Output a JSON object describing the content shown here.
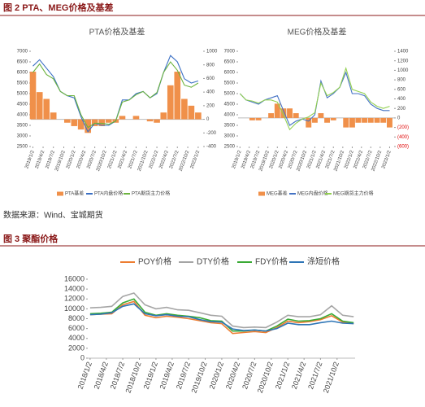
{
  "figure_2_title": "图 2 PTA、MEG价格及基差",
  "source": "数据来源：Wind、宝城期货",
  "figure_3_title": "图 3 聚酯价格",
  "chart_data": [
    {
      "type": "line",
      "title": "PTA价格及基差",
      "x": [
        "2019/1/2",
        "2019/3/2",
        "2019/5/2",
        "2019/7/2",
        "2019/9/2",
        "2019/11/2",
        "2020/1/2",
        "2020/3/2",
        "2020/5/2",
        "2020/7/2",
        "2020/9/2",
        "2020/11/2",
        "2021/1/2",
        "2021/3/2",
        "2021/5/2",
        "2021/7/2",
        "2021/9/2",
        "2021/11/2",
        "2022/1/2",
        "2022/3/2",
        "2022/5/2",
        "2022/7/2",
        "2022/9/2",
        "2022/11/2",
        "2023/1/2"
      ],
      "xlim": [
        "2018/12/15",
        "2023/2/15"
      ],
      "xticks": [
        "2019/1/2",
        "2019/4/2",
        "2019/7/2",
        "2019/10/2",
        "2020/1/2",
        "2020/4/2",
        "2020/7/2",
        "2020/10/2",
        "2021/1/2",
        "2021/4/2",
        "2021/7/2",
        "2021/10/2",
        "2022/1/2",
        "2022/4/2",
        "2022/7/2",
        "2022/10/2",
        "2023/1/2"
      ],
      "ylim": [
        2500,
        7000
      ],
      "yticks": [
        2500,
        3000,
        3500,
        4000,
        4500,
        5000,
        5500,
        6000,
        6500,
        7000
      ],
      "y2lim": [
        -400,
        1000
      ],
      "y2ticks": [
        -400,
        -200,
        0,
        200,
        400,
        600,
        800,
        1000
      ],
      "series": [
        {
          "name": "PTA基差",
          "type": "bar",
          "axis": "y2",
          "color": "#f0904a",
          "values": [
            700,
            400,
            300,
            100,
            0,
            -50,
            -100,
            -150,
            -200,
            -100,
            -100,
            -50,
            -50,
            50,
            0,
            50,
            0,
            -30,
            -50,
            100,
            500,
            700,
            300,
            200,
            100
          ]
        },
        {
          "name": "PTA内盘价格",
          "type": "line",
          "color": "#3a6fc4",
          "values": [
            6300,
            6600,
            6200,
            5800,
            5100,
            4900,
            4800,
            3900,
            3200,
            3600,
            3500,
            3500,
            3700,
            4700,
            4700,
            5000,
            5100,
            4800,
            5000,
            6000,
            6800,
            6500,
            5700,
            5500,
            5600
          ]
        },
        {
          "name": "PTA期货主力价格",
          "type": "line",
          "color": "#6cb33e",
          "values": [
            6000,
            6400,
            5900,
            5700,
            5100,
            4900,
            4900,
            4000,
            3400,
            3600,
            3600,
            3550,
            3700,
            4600,
            4700,
            4950,
            5100,
            4800,
            5050,
            6000,
            6500,
            6100,
            5400,
            5300,
            5500
          ]
        }
      ]
    },
    {
      "type": "line",
      "title": "MEG价格及基差",
      "x": [
        "2019/1/2",
        "2019/3/2",
        "2019/5/2",
        "2019/7/2",
        "2019/9/2",
        "2019/11/2",
        "2020/1/2",
        "2020/3/2",
        "2020/5/2",
        "2020/7/2",
        "2020/9/2",
        "2020/11/2",
        "2021/1/2",
        "2021/3/2",
        "2021/5/2",
        "2021/7/2",
        "2021/9/2",
        "2021/11/2",
        "2022/1/2",
        "2022/3/2",
        "2022/5/2",
        "2022/7/2",
        "2022/9/2",
        "2022/11/2",
        "2023/1/2"
      ],
      "xlim": [
        "2018/12/15",
        "2023/2/15"
      ],
      "xticks": [
        "2019/1/2",
        "2019/4/2",
        "2019/7/2",
        "2019/10/2",
        "2020/1/2",
        "2020/4/2",
        "2020/7/2",
        "2020/10/2",
        "2021/1/2",
        "2021/4/2",
        "2021/7/2",
        "2021/10/2",
        "2022/1/2",
        "2022/4/2",
        "2022/7/2",
        "2022/10/2",
        "2023/1/2"
      ],
      "ylim": [
        2500,
        7000
      ],
      "yticks": [
        2500,
        3000,
        3500,
        4000,
        4500,
        5000,
        5500,
        6000,
        6500,
        7000
      ],
      "y2lim": [
        -600,
        1400
      ],
      "y2ticks": [
        {
          "value": -600,
          "label": "(600)"
        },
        {
          "value": -400,
          "label": "(400)"
        },
        {
          "value": -200,
          "label": "(200)"
        },
        0,
        200,
        400,
        600,
        800,
        1000,
        1200,
        1400
      ],
      "y2tick_negative_color": "#e00000",
      "series": [
        {
          "name": "MEG基差",
          "type": "bar",
          "axis": "y2",
          "color": "#f0904a",
          "values": [
            0,
            0,
            -50,
            -50,
            0,
            100,
            300,
            200,
            200,
            100,
            0,
            -200,
            -100,
            100,
            -100,
            -50,
            0,
            -200,
            -200,
            -100,
            -100,
            -100,
            -100,
            -100,
            -200
          ]
        },
        {
          "name": "MEG内盘价格",
          "type": "line",
          "color": "#4472c4",
          "values": [
            5000,
            4700,
            4600,
            4500,
            4700,
            4800,
            4900,
            4200,
            3500,
            3700,
            3800,
            3700,
            4000,
            5600,
            4800,
            5000,
            5300,
            6000,
            5000,
            5000,
            4900,
            4500,
            4300,
            4200,
            4200
          ]
        },
        {
          "name": "MEG期货主力价格",
          "type": "line",
          "color": "#92d050",
          "values": [
            5000,
            4700,
            4650,
            4550,
            4700,
            4700,
            4600,
            4000,
            3300,
            3600,
            3800,
            3900,
            4100,
            5500,
            4900,
            5050,
            5300,
            6200,
            5200,
            5100,
            5000,
            4600,
            4400,
            4300,
            4400
          ]
        }
      ]
    },
    {
      "type": "line",
      "x": [
        "2018/1/2",
        "2018/3/2",
        "2018/5/2",
        "2018/7/2",
        "2018/9/2",
        "2018/11/2",
        "2019/1/2",
        "2019/3/2",
        "2019/5/2",
        "2019/7/2",
        "2019/9/2",
        "2019/11/2",
        "2020/1/2",
        "2020/3/2",
        "2020/5/2",
        "2020/7/2",
        "2020/9/2",
        "2020/11/2",
        "2021/1/2",
        "2021/3/2",
        "2021/5/2",
        "2021/7/2",
        "2021/9/2",
        "2021/11/2",
        "2022/1/2"
      ],
      "xlim": [
        "2017/12/20",
        "2022/1/10"
      ],
      "xticks": [
        "2018/1/2",
        "2018/4/2",
        "2018/7/2",
        "2018/10/2",
        "2019/1/2",
        "2019/4/2",
        "2019/7/2",
        "2019/10/2",
        "2020/1/2",
        "2020/4/2",
        "2020/7/2",
        "2020/10/2",
        "2021/1/2",
        "2021/4/2",
        "2021/7/2",
        "2021/10/2"
      ],
      "ylim": [
        0,
        16000
      ],
      "yticks": [
        0,
        2000,
        4000,
        6000,
        8000,
        10000,
        12000,
        14000,
        16000
      ],
      "series": [
        {
          "name": "POY价格",
          "type": "line",
          "color": "#ed7d31",
          "values": [
            8800,
            8900,
            9000,
            10800,
            11500,
            8700,
            8200,
            8500,
            8300,
            8000,
            7600,
            7200,
            7000,
            5000,
            5200,
            5400,
            5200,
            6200,
            7500,
            7200,
            7400,
            7800,
            8600,
            7300,
            7000
          ]
        },
        {
          "name": "DTY价格",
          "type": "line",
          "color": "#a5a5a5",
          "values": [
            10200,
            10300,
            10500,
            12500,
            13200,
            10800,
            10000,
            10300,
            9800,
            9700,
            9200,
            8700,
            8500,
            6500,
            6200,
            6300,
            6200,
            7300,
            8700,
            8400,
            8400,
            8800,
            10600,
            8700,
            8400
          ]
        },
        {
          "name": "FDY价格",
          "type": "line",
          "color": "#3aaa35",
          "values": [
            9000,
            9100,
            9300,
            11200,
            12000,
            9300,
            8700,
            9000,
            8700,
            8500,
            8200,
            7600,
            7500,
            5500,
            5500,
            5700,
            5500,
            6500,
            7900,
            7500,
            7600,
            8000,
            9000,
            7500,
            7200
          ]
        },
        {
          "name": "涤短价格",
          "type": "line",
          "color": "#2e75b6",
          "values": [
            8800,
            8900,
            9200,
            10500,
            11000,
            9000,
            8600,
            8800,
            8500,
            8400,
            7800,
            7400,
            7300,
            5900,
            5600,
            5700,
            5500,
            6000,
            7100,
            6800,
            6800,
            7200,
            7500,
            7100,
            7000
          ]
        }
      ]
    }
  ]
}
